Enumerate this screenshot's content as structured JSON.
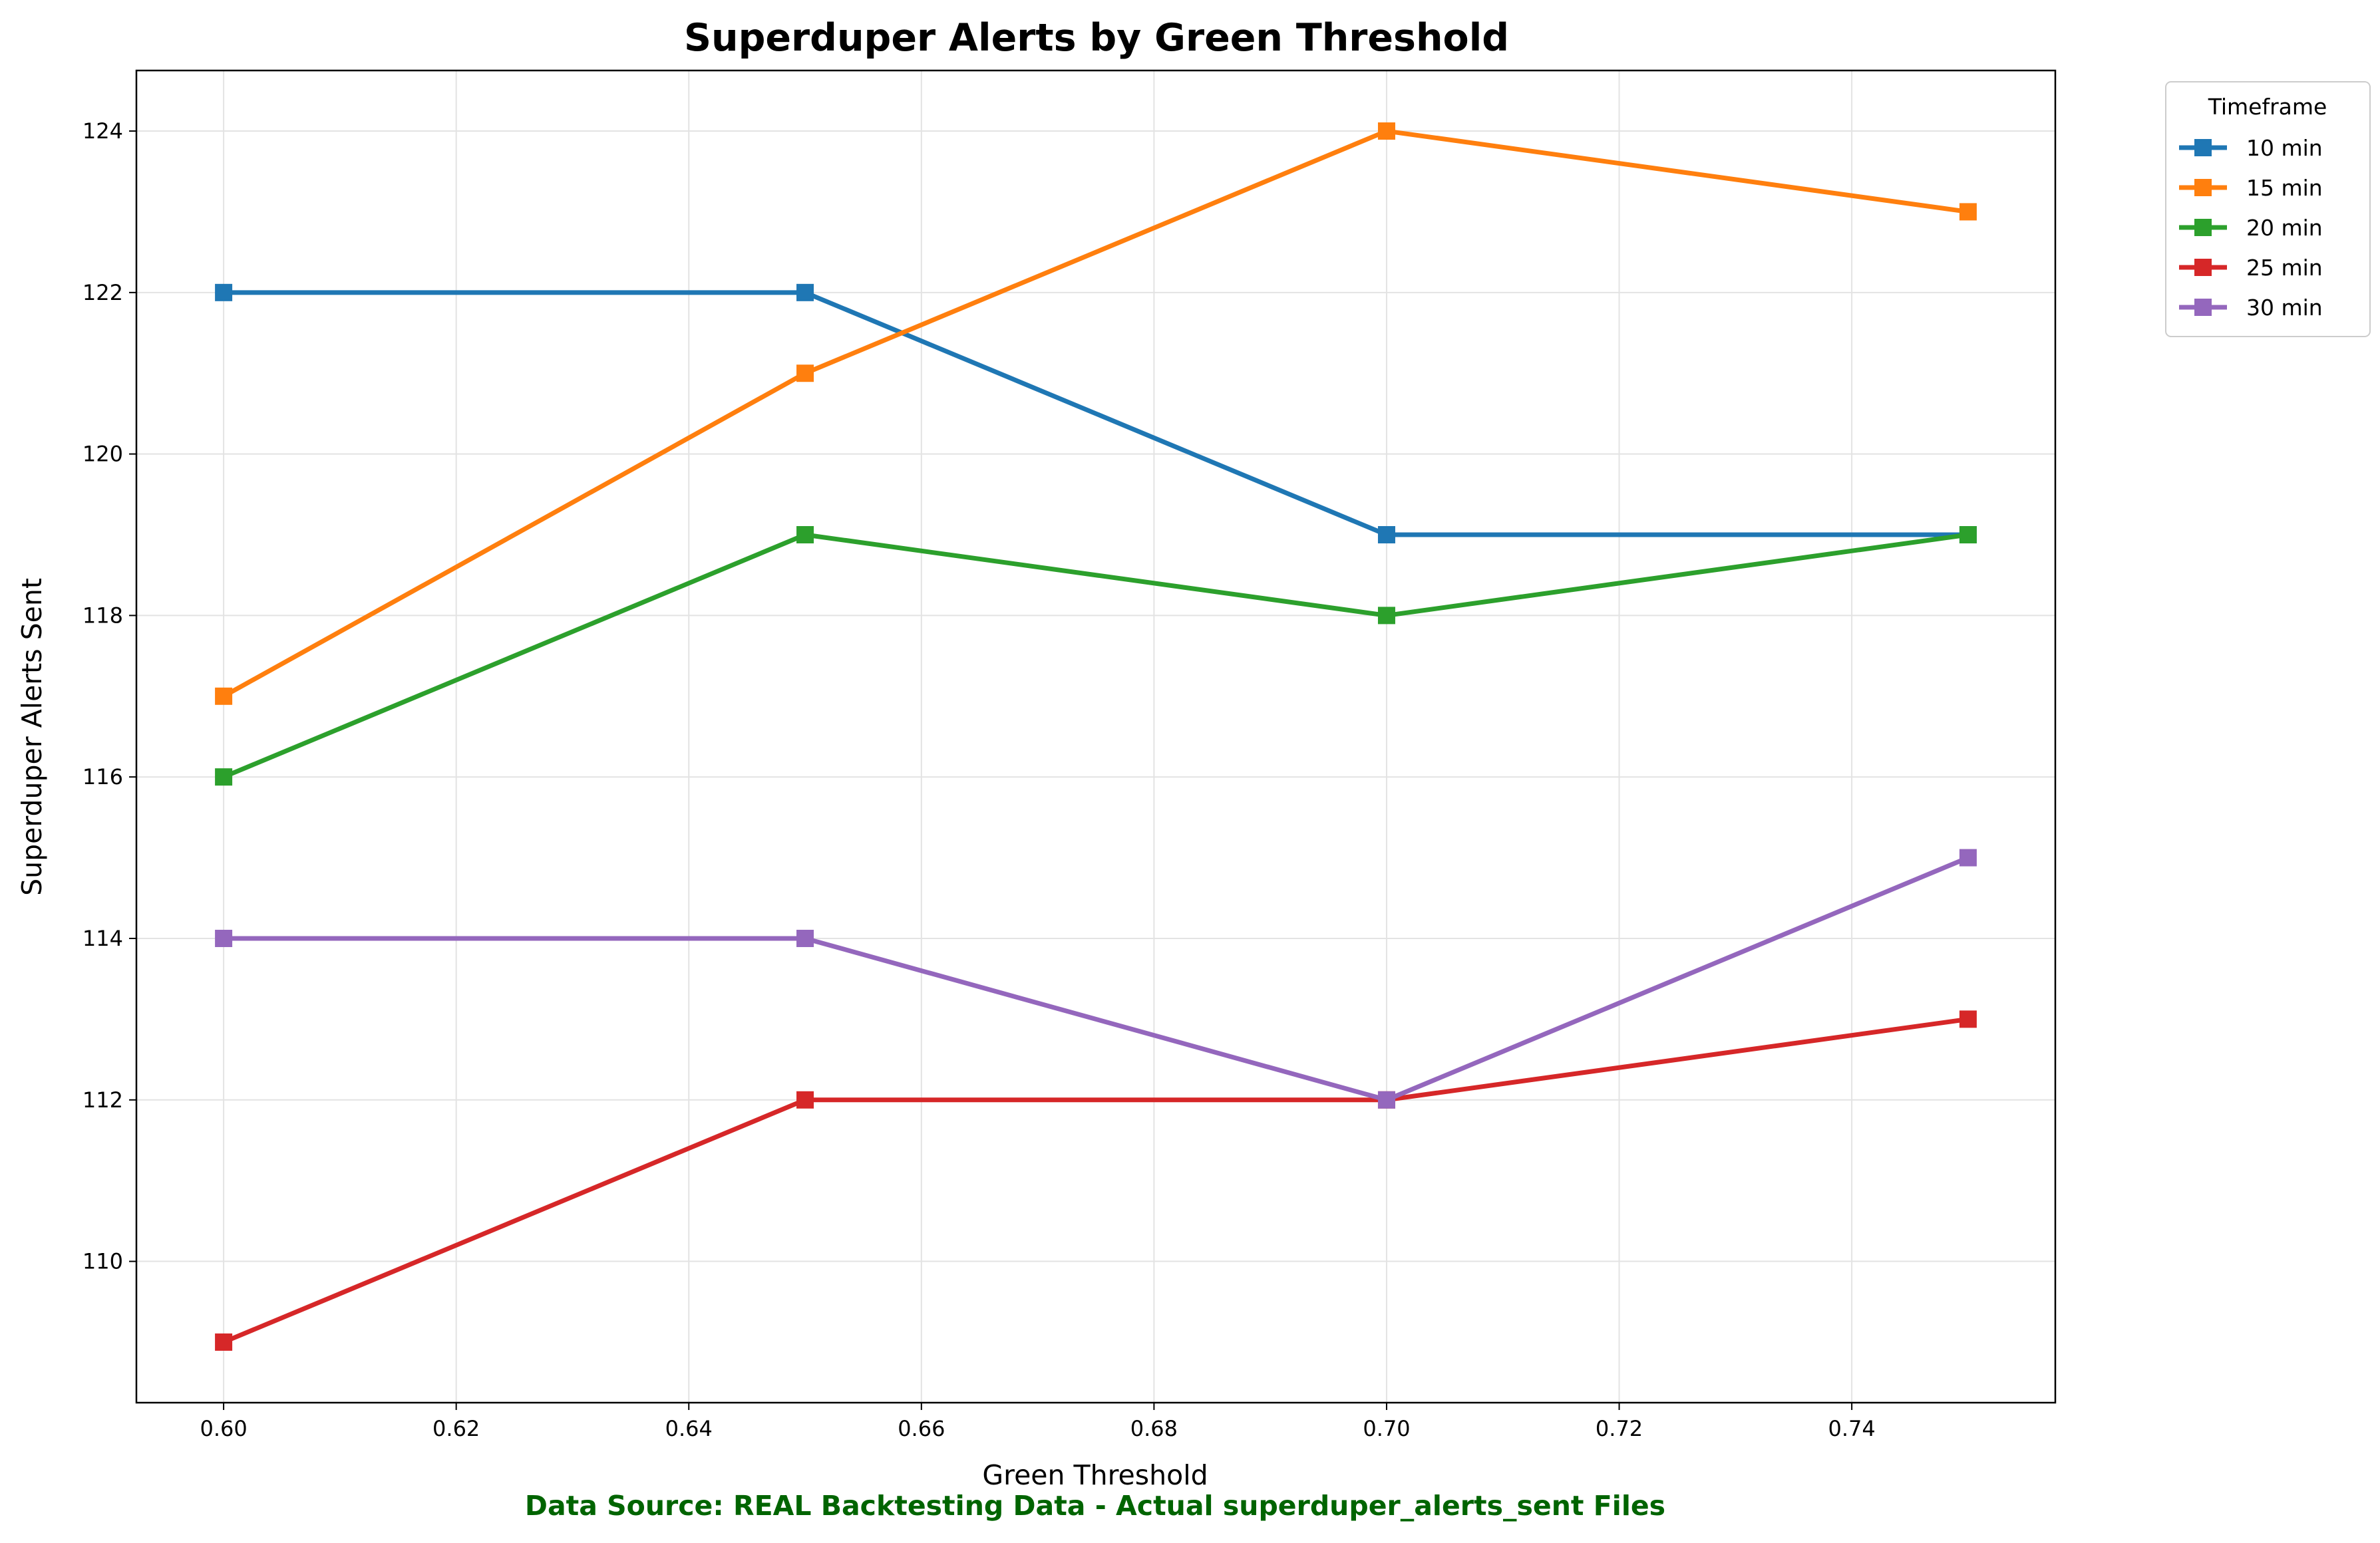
{
  "chart_data": {
    "type": "line",
    "title": "Superduper Alerts by Green Threshold",
    "xlabel": "Green Threshold",
    "ylabel": "Superduper Alerts Sent",
    "x": [
      0.6,
      0.65,
      0.7,
      0.75
    ],
    "xlim": [
      0.5925,
      0.7575
    ],
    "ylim": [
      108.25,
      124.75
    ],
    "xticks": [
      "0.60",
      "0.62",
      "0.64",
      "0.66",
      "0.68",
      "0.70",
      "0.72",
      "0.74"
    ],
    "xtick_values": [
      0.6,
      0.62,
      0.64,
      0.66,
      0.68,
      0.7,
      0.72,
      0.74
    ],
    "yticks": [
      "110",
      "112",
      "114",
      "116",
      "118",
      "120",
      "122",
      "124"
    ],
    "ytick_values": [
      110,
      112,
      114,
      116,
      118,
      120,
      122,
      124
    ],
    "grid": true,
    "legend": {
      "title": "Timeframe",
      "placement": "outside-upper-right"
    },
    "marker": "square",
    "series": [
      {
        "name": "10 min",
        "color": "#1f77b4",
        "values": [
          122,
          122,
          119,
          119
        ]
      },
      {
        "name": "15 min",
        "color": "#ff7f0e",
        "values": [
          117,
          121,
          124,
          123
        ]
      },
      {
        "name": "20 min",
        "color": "#2ca02c",
        "values": [
          116,
          119,
          118,
          119
        ]
      },
      {
        "name": "25 min",
        "color": "#d62728",
        "values": [
          109,
          112,
          112,
          113
        ]
      },
      {
        "name": "30 min",
        "color": "#9467bd",
        "values": [
          114,
          114,
          112,
          115
        ]
      }
    ]
  },
  "footnote": {
    "text": "Data Source: REAL Backtesting Data - Actual superduper_alerts_sent Files",
    "color": "#006400"
  }
}
